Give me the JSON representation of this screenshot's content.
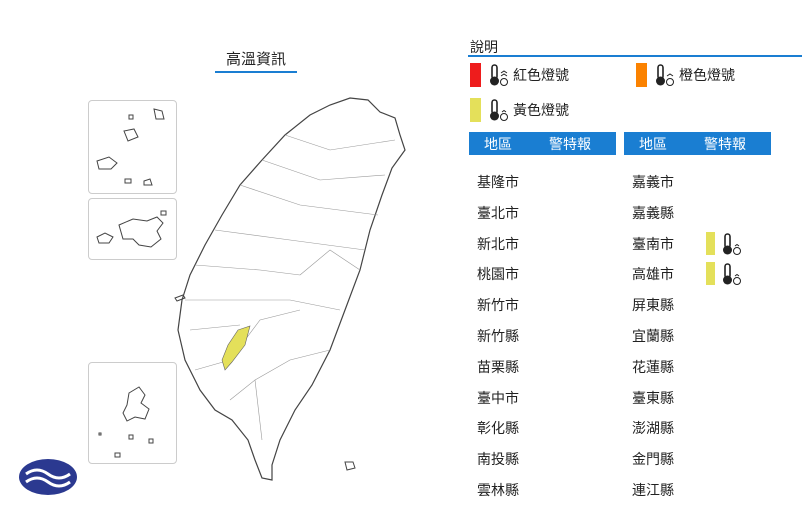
{
  "map": {
    "title": "高溫資訊",
    "highlight_color": "#e4e05a",
    "highlighted_regions": [
      "臺南市",
      "高雄市"
    ]
  },
  "legend": {
    "title": "說明",
    "items": [
      {
        "label": "紅色燈號",
        "color": "#ee1c1c",
        "icon": "thermometer-icon"
      },
      {
        "label": "橙色燈號",
        "color": "#fb8200",
        "icon": "thermometer-icon"
      },
      {
        "label": "黃色燈號",
        "color": "#e4e05a",
        "icon": "thermometer-icon"
      }
    ]
  },
  "table": {
    "headers": {
      "region": "地區",
      "warning": "警特報"
    },
    "left": [
      "基隆市",
      "臺北市",
      "新北市",
      "桃園市",
      "新竹市",
      "新竹縣",
      "苗栗縣",
      "臺中市",
      "彰化縣",
      "南投縣",
      "雲林縣"
    ],
    "right": [
      "嘉義市",
      "嘉義縣",
      "臺南市",
      "高雄市",
      "屏東縣",
      "宜蘭縣",
      "花蓮縣",
      "臺東縣",
      "澎湖縣",
      "金門縣",
      "連江縣"
    ],
    "warnings": {
      "臺南市": "yellow",
      "高雄市": "yellow"
    }
  }
}
